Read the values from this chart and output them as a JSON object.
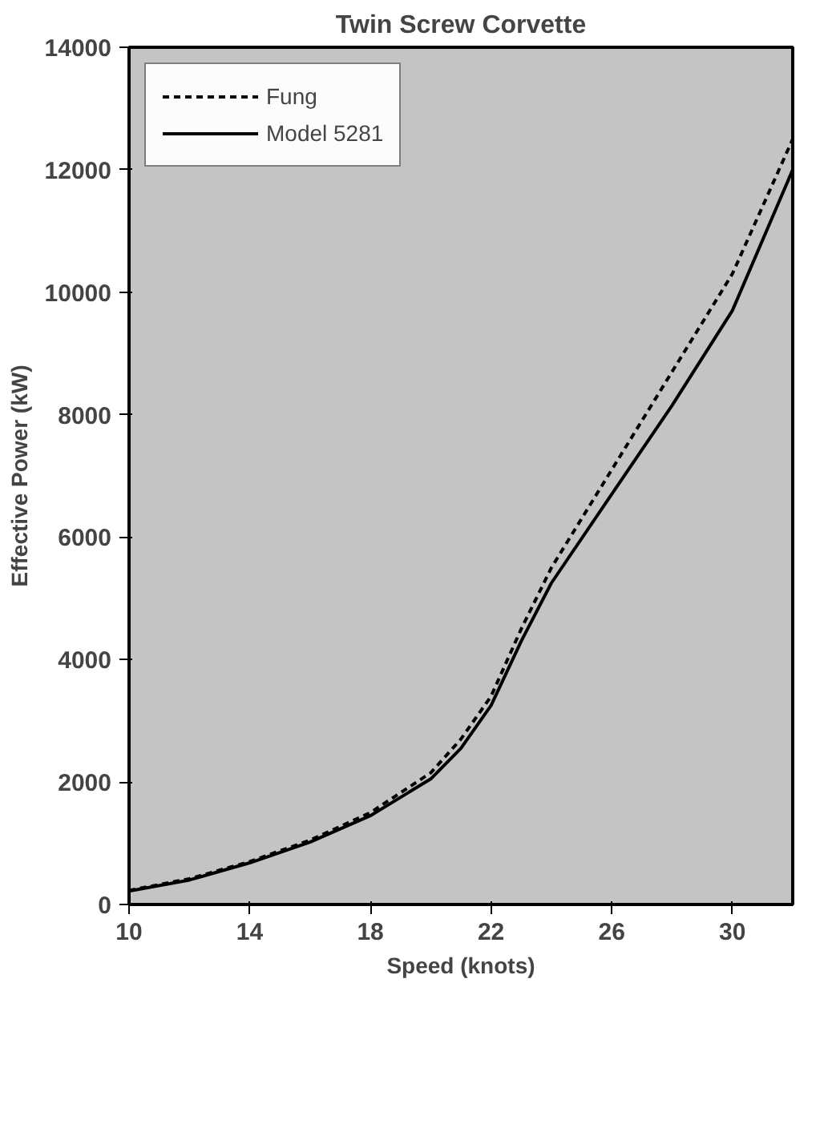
{
  "chart_data": {
    "type": "line",
    "title": "Twin Screw Corvette",
    "xlabel": "Speed (knots)",
    "ylabel": "Effective Power (kW)",
    "x": [
      10,
      12,
      14,
      16,
      18,
      20,
      21,
      22,
      23,
      24,
      26,
      28,
      30,
      32
    ],
    "series": [
      {
        "name": "Fung",
        "color": "#000000",
        "line_style": "dashed",
        "values": [
          230,
          420,
          700,
          1050,
          1500,
          2150,
          2700,
          3400,
          4500,
          5500,
          7100,
          8700,
          10300,
          12500
        ]
      },
      {
        "name": "Model 5281",
        "color": "#000000",
        "line_style": "solid",
        "values": [
          220,
          400,
          680,
          1020,
          1450,
          2050,
          2550,
          3250,
          4300,
          5250,
          6700,
          8150,
          9700,
          12000
        ]
      }
    ],
    "xlim": [
      10,
      32
    ],
    "xticks": [
      10,
      14,
      18,
      22,
      26,
      30
    ],
    "ylim": [
      0,
      14000
    ],
    "yticks": [
      0,
      2000,
      4000,
      6000,
      8000,
      10000,
      12000,
      14000
    ],
    "grid": false,
    "legend": "top left"
  }
}
